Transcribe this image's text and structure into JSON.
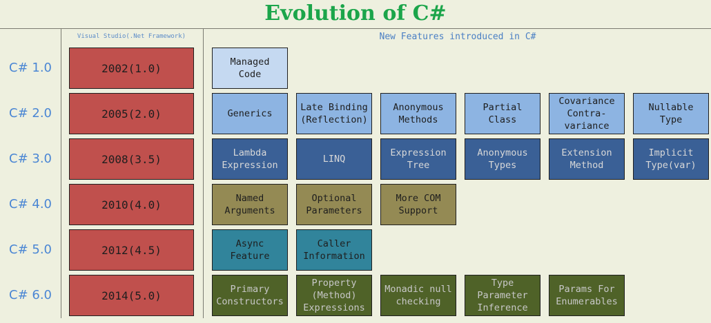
{
  "title": "Evolution of C#",
  "header_left": "Visual Studio(.Net Framework)",
  "header_right": "New Features introduced in C#",
  "colors": {
    "title": "#1ba54a",
    "year_box": "#c0504d",
    "v1": "#c5d9f1",
    "v2": "#8db4e2",
    "v3": "#3a6096",
    "v4": "#948a54",
    "v5": "#31849b",
    "v6": "#4f6228"
  },
  "rows": [
    {
      "version": "C# 1.0",
      "year": "2002(1.0)",
      "features": [
        "Managed\nCode"
      ]
    },
    {
      "version": "C# 2.0",
      "year": "2005(2.0)",
      "features": [
        "Generics",
        "Late Binding\n(Reflection)",
        "Anonymous\nMethods",
        "Partial\nClass",
        "Covariance\nContra-\nvariance",
        "Nullable\nType"
      ]
    },
    {
      "version": "C# 3.0",
      "year": "2008(3.5)",
      "features": [
        "Lambda\nExpression",
        "LINQ",
        "Expression\nTree",
        "Anonymous\nTypes",
        "Extension\nMethod",
        "Implicit\nType(var)"
      ]
    },
    {
      "version": "C# 4.0",
      "year": "2010(4.0)",
      "features": [
        "Named\nArguments",
        "Optional\nParameters",
        "More COM\nSupport"
      ]
    },
    {
      "version": "C# 5.0",
      "year": "2012(4.5)",
      "features": [
        "Async\nFeature",
        "Caller\nInformation"
      ]
    },
    {
      "version": "C# 6.0",
      "year": "2014(5.0)",
      "features": [
        "Primary\nConstructors",
        "Property\n(Method)\nExpressions",
        "Monadic null\nchecking",
        "Type\nParameter\nInference",
        "Params For\nEnumerables"
      ]
    }
  ]
}
